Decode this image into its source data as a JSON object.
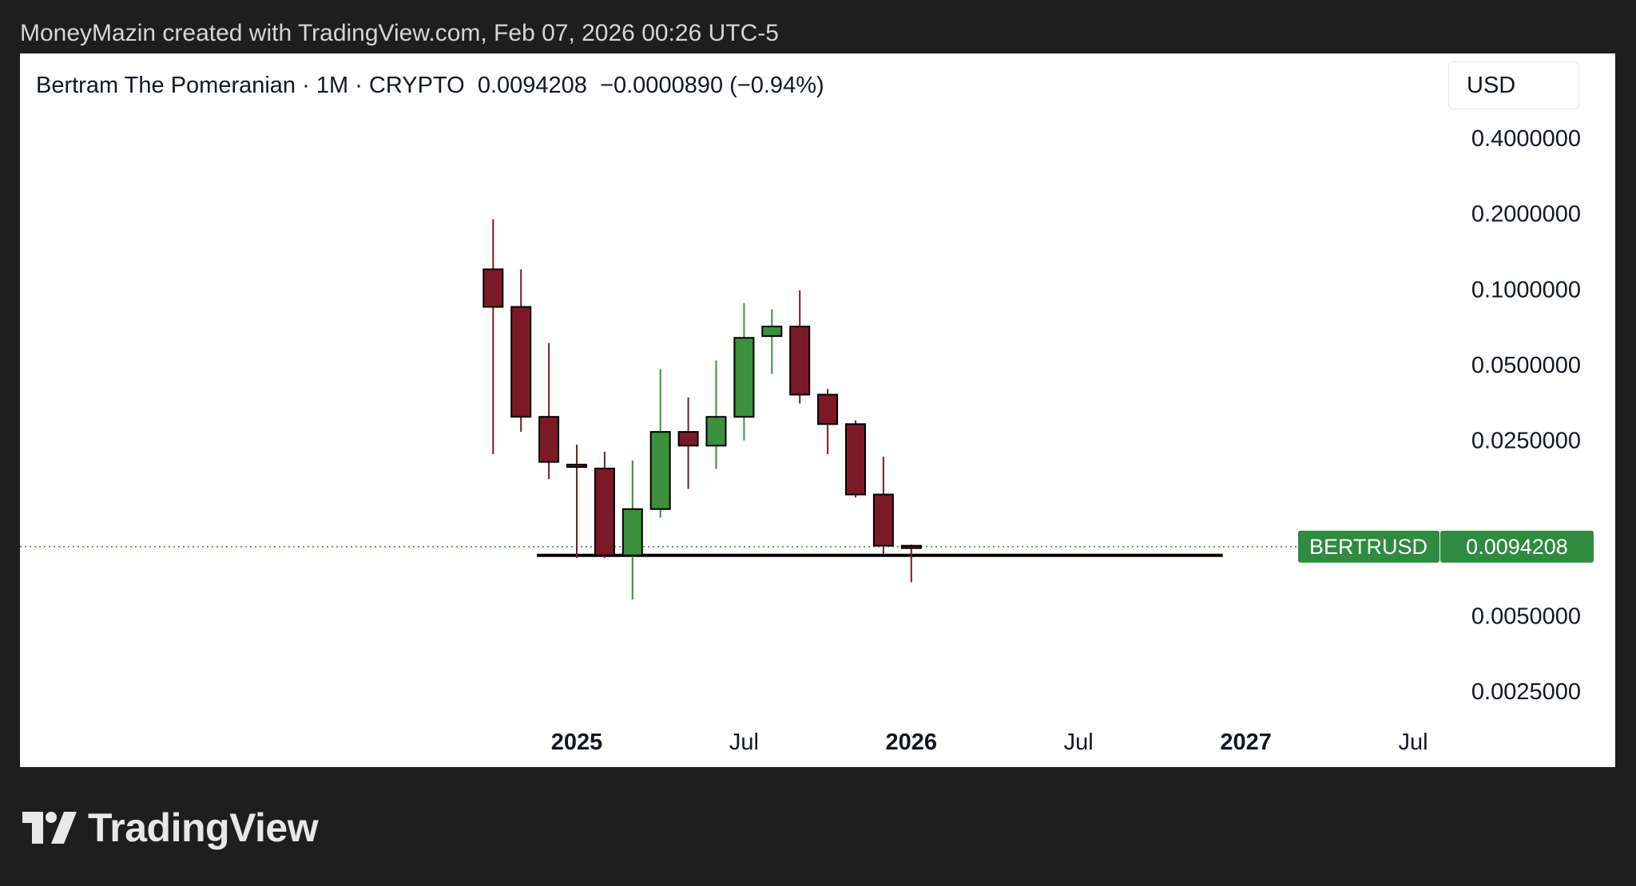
{
  "caption": "MoneyMazin created with TradingView.com, Feb 07, 2026 00:26 UTC-5",
  "header": {
    "symbol_name": "Bertram The Pomeranian",
    "interval": "1M",
    "exchange": "CRYPTO",
    "last_price": "0.0094208",
    "change": "−0.0000890",
    "change_pct": "(−0.94%)"
  },
  "currency": "USD",
  "brand": "TradingView",
  "colors": {
    "up": "#3c8f3c",
    "down": "#7b1a26",
    "price_tag": "#2e8b3f",
    "support_line": "#000000"
  },
  "chart_data": {
    "type": "candlestick",
    "y_scale": "log",
    "ylim": [
      0.0018,
      0.55
    ],
    "y_ticks": [
      "0.4000000",
      "0.2000000",
      "0.1000000",
      "0.0500000",
      "0.0250000",
      "0.0050000",
      "0.0025000"
    ],
    "y_tick_values": [
      0.4,
      0.2,
      0.1,
      0.05,
      0.025,
      0.005,
      0.0025
    ],
    "x_ticks": [
      {
        "label": "2025",
        "month_index": 0,
        "bold": true
      },
      {
        "label": "Jul",
        "month_index": 6,
        "bold": false
      },
      {
        "label": "2026",
        "month_index": 12,
        "bold": true
      },
      {
        "label": "Jul",
        "month_index": 18,
        "bold": false
      },
      {
        "label": "2027",
        "month_index": 24,
        "bold": true
      },
      {
        "label": "Jul",
        "month_index": 30,
        "bold": false
      }
    ],
    "candles": [
      {
        "date": "2024-10",
        "open": 0.12,
        "high": 0.19,
        "low": 0.022,
        "close": 0.085
      },
      {
        "date": "2024-11",
        "open": 0.085,
        "high": 0.12,
        "low": 0.027,
        "close": 0.031
      },
      {
        "date": "2024-12",
        "open": 0.031,
        "high": 0.061,
        "low": 0.0175,
        "close": 0.0205
      },
      {
        "date": "2025-01",
        "open": 0.02,
        "high": 0.024,
        "low": 0.0085,
        "close": 0.0198
      },
      {
        "date": "2025-02",
        "open": 0.0193,
        "high": 0.0225,
        "low": 0.0085,
        "close": 0.0087
      },
      {
        "date": "2025-03",
        "open": 0.0087,
        "high": 0.0208,
        "low": 0.0058,
        "close": 0.0133
      },
      {
        "date": "2025-04",
        "open": 0.0133,
        "high": 0.048,
        "low": 0.0123,
        "close": 0.027
      },
      {
        "date": "2025-05",
        "open": 0.027,
        "high": 0.037,
        "low": 0.016,
        "close": 0.0238
      },
      {
        "date": "2025-06",
        "open": 0.0238,
        "high": 0.052,
        "low": 0.0192,
        "close": 0.031
      },
      {
        "date": "2025-07",
        "open": 0.031,
        "high": 0.088,
        "low": 0.025,
        "close": 0.064
      },
      {
        "date": "2025-08",
        "open": 0.065,
        "high": 0.083,
        "low": 0.046,
        "close": 0.071
      },
      {
        "date": "2025-09",
        "open": 0.071,
        "high": 0.099,
        "low": 0.035,
        "close": 0.038
      },
      {
        "date": "2025-10",
        "open": 0.038,
        "high": 0.04,
        "low": 0.022,
        "close": 0.029
      },
      {
        "date": "2025-11",
        "open": 0.029,
        "high": 0.03,
        "low": 0.0148,
        "close": 0.0152
      },
      {
        "date": "2025-12",
        "open": 0.0152,
        "high": 0.0215,
        "low": 0.0088,
        "close": 0.0095
      },
      {
        "date": "2026-01",
        "open": 0.0095,
        "high": 0.0096,
        "low": 0.0068,
        "close": 0.0094
      }
    ],
    "last_price_label": {
      "ticker": "BERTRUSD",
      "price": "0.0094208",
      "value": 0.0094208
    },
    "support_level": 0.0087,
    "support_range": {
      "from_month_index": -1,
      "to_month_index": 23
    }
  }
}
